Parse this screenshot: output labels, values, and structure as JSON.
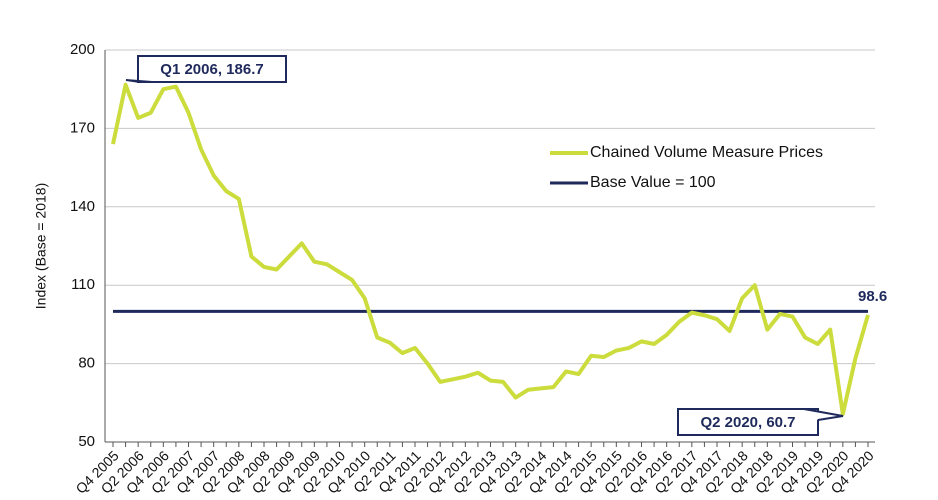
{
  "chart_data": {
    "type": "line",
    "y_label": "Index (Base = 2018)",
    "categories": [
      "Q4 2005",
      null,
      "Q2 2006",
      null,
      "Q4 2006",
      null,
      "Q2 2007",
      null,
      "Q4 2007",
      null,
      "Q2 2008",
      null,
      "Q4 2008",
      null,
      "Q2 2009",
      null,
      "Q4 2009",
      null,
      "Q2 2010",
      null,
      "Q4 2010",
      null,
      "Q2 2011",
      null,
      "Q4 2011",
      null,
      "Q2 2012",
      null,
      "Q4 2012",
      null,
      "Q2 2013",
      null,
      "Q4 2013",
      null,
      "Q2 2014",
      null,
      "Q4 2014",
      null,
      "Q2 2015",
      null,
      "Q4 2015",
      null,
      "Q2 2016",
      null,
      "Q4 2016",
      null,
      "Q2 2017",
      null,
      "Q4 2017",
      null,
      "Q2 2018",
      null,
      "Q4 2018",
      null,
      "Q2 2019",
      null,
      "Q4 2019",
      null,
      "Q2 2020",
      null,
      "Q4 2020"
    ],
    "series": [
      {
        "name": "Chained Volume Measure Prices",
        "color": "#cbdc3c",
        "values": [
          164,
          186.7,
          174,
          176,
          185,
          186,
          176,
          162,
          152,
          146,
          143,
          121,
          117,
          116,
          121,
          126,
          119,
          118,
          115,
          112,
          105,
          90,
          88,
          84,
          86,
          80,
          73,
          74,
          75,
          76.5,
          73.5,
          73,
          67,
          70,
          70.5,
          71,
          77,
          76,
          83,
          82.5,
          85,
          86,
          88.5,
          87.5,
          91,
          96,
          99.5,
          98.5,
          97,
          92.5,
          105,
          110,
          93,
          99,
          98,
          90,
          87.5,
          93,
          60.7,
          82,
          98.6
        ]
      },
      {
        "name": "Base Value = 100",
        "color": "#1f2a5c",
        "values": [
          100,
          100,
          100,
          100,
          100,
          100,
          100,
          100,
          100,
          100,
          100,
          100,
          100,
          100,
          100,
          100,
          100,
          100,
          100,
          100,
          100,
          100,
          100,
          100,
          100,
          100,
          100,
          100,
          100,
          100,
          100,
          100,
          100,
          100,
          100,
          100,
          100,
          100,
          100,
          100,
          100,
          100,
          100,
          100,
          100,
          100,
          100,
          100,
          100,
          100,
          100,
          100,
          100,
          100,
          100,
          100,
          100,
          100,
          100,
          100,
          100
        ]
      }
    ],
    "annotations": [
      {
        "text": "Q1 2006, 186.7"
      },
      {
        "text": "Q2 2020, 60.7"
      },
      {
        "text": "98.6"
      }
    ],
    "ylim": [
      50,
      200
    ],
    "yticks": [
      50,
      80,
      110,
      140,
      170,
      200
    ],
    "grid": true
  }
}
